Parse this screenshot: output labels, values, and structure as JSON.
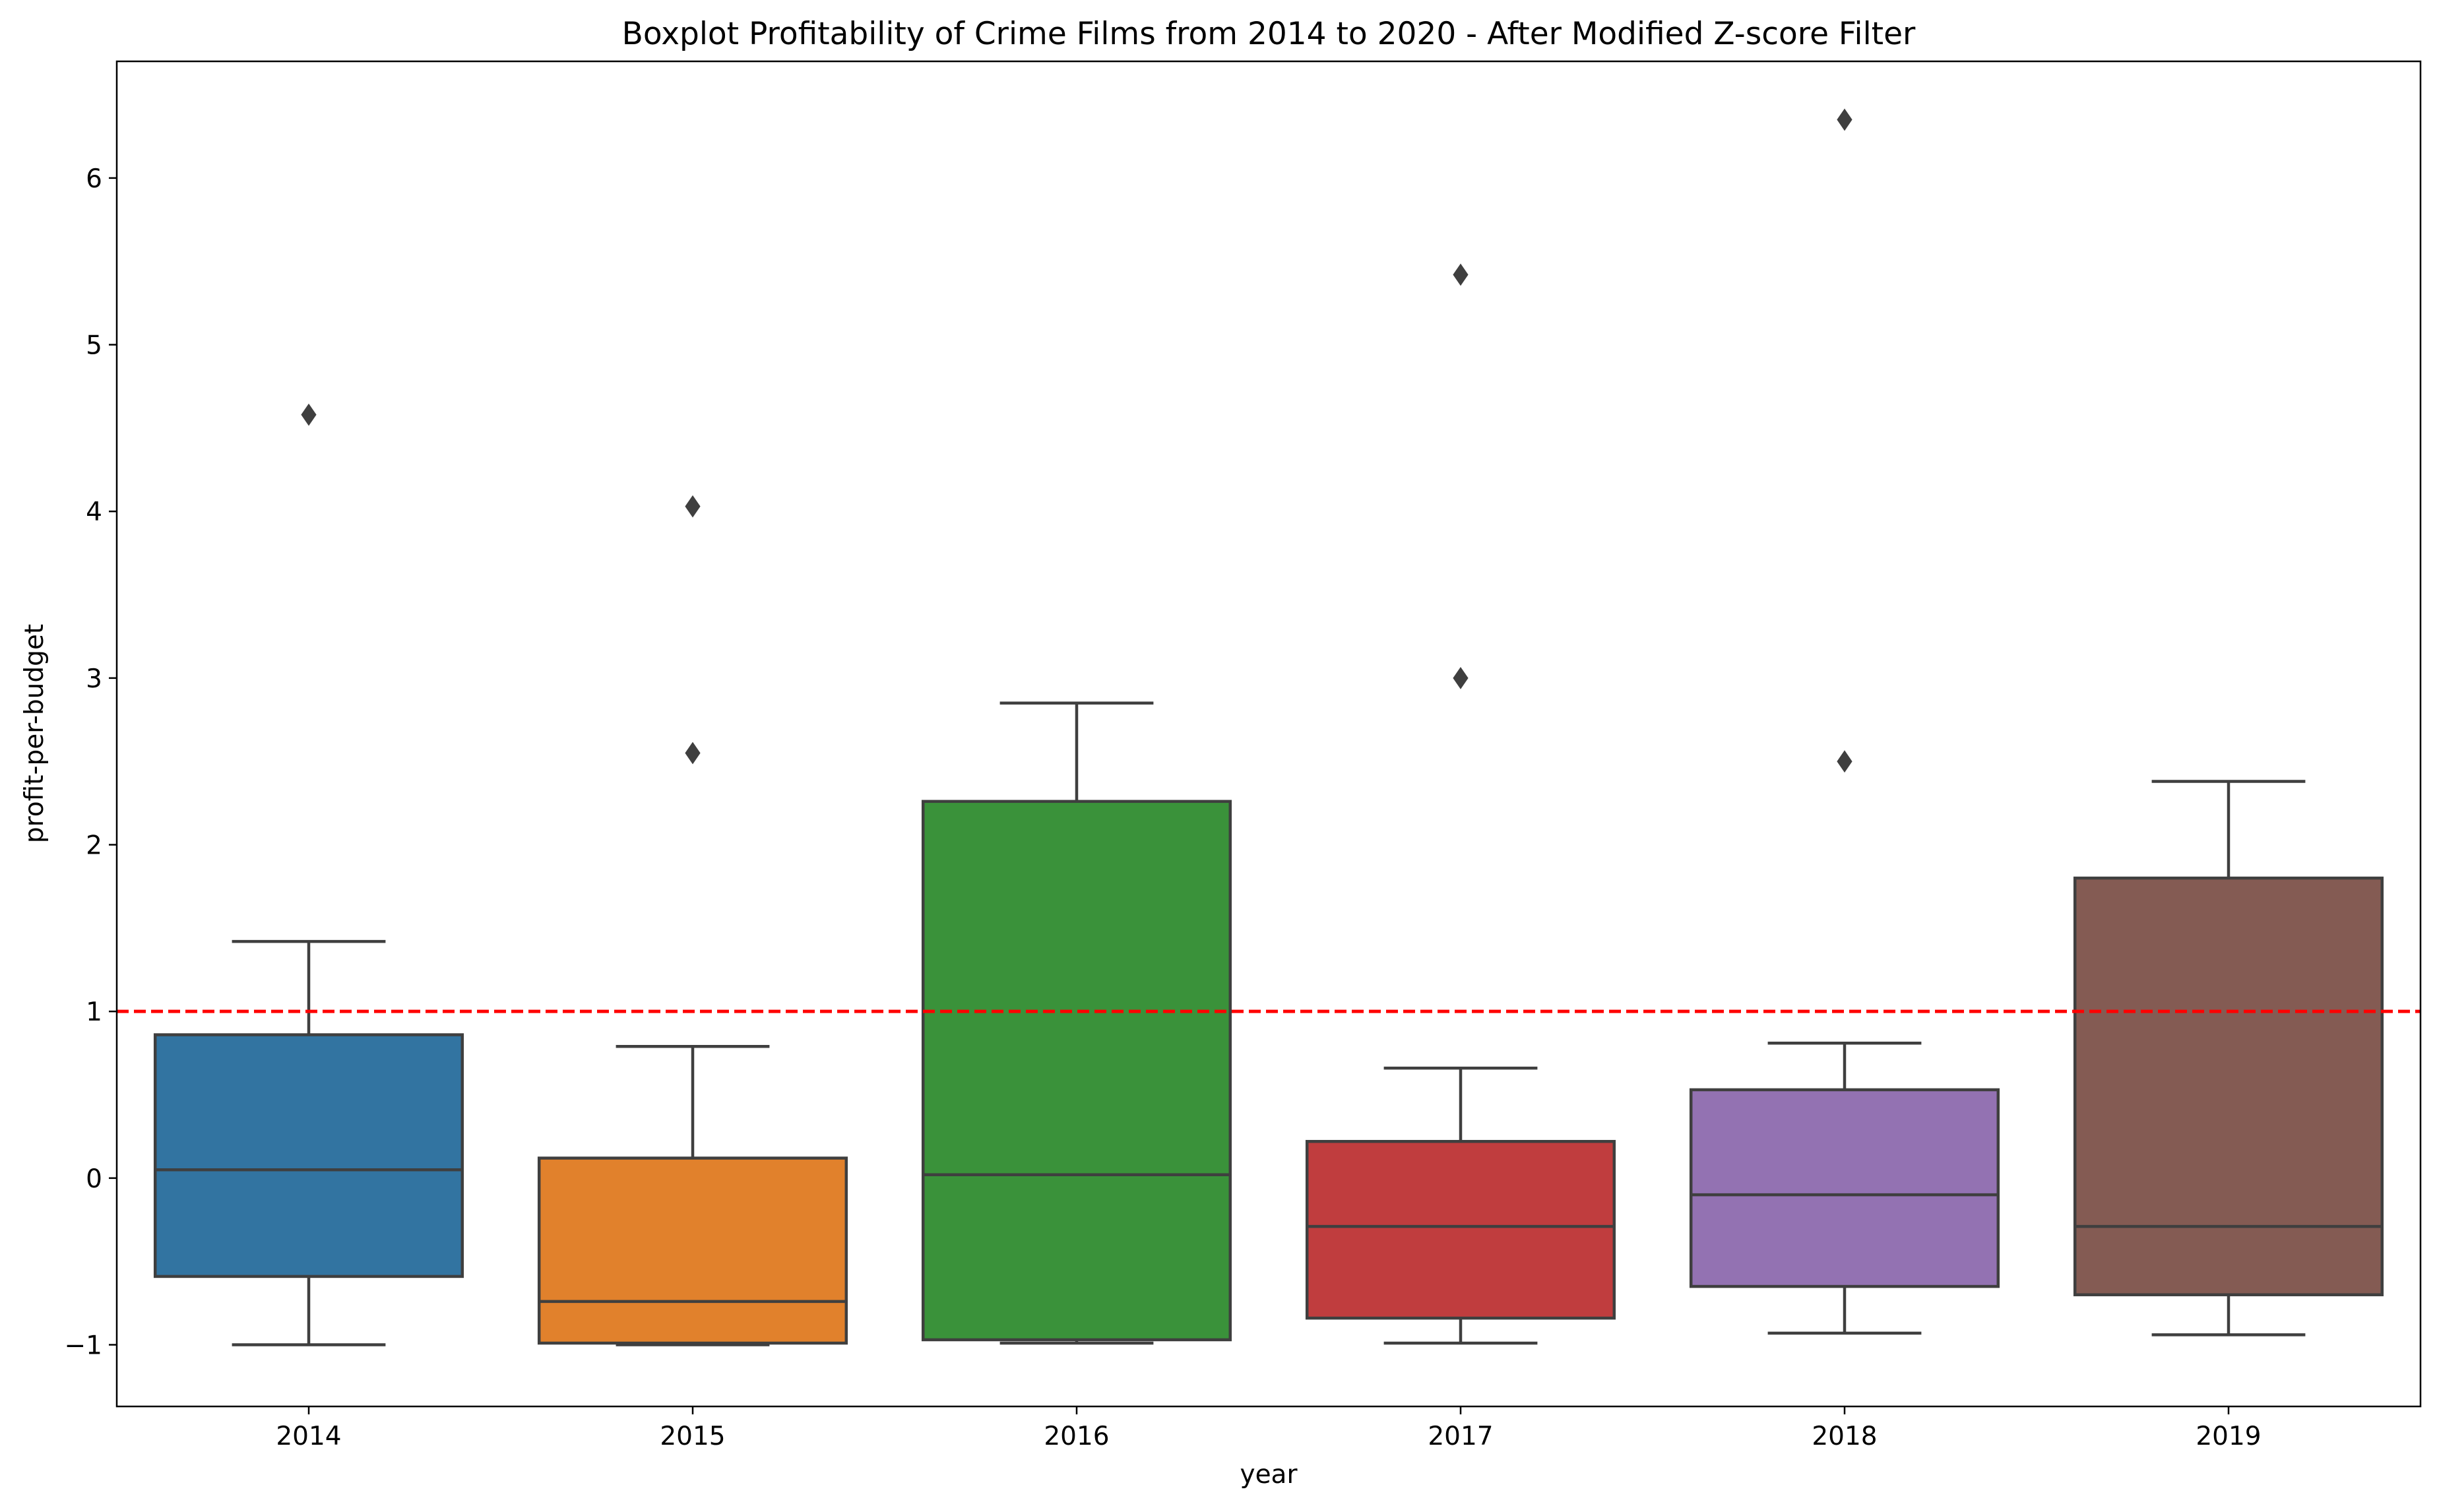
{
  "chart_data": {
    "type": "box",
    "title": "Boxplot Profitability of Crime Films from 2014 to 2020 - After Modified Z-score Filter",
    "xlabel": "year",
    "ylabel": "profit-per-budget",
    "categories": [
      "2014",
      "2015",
      "2016",
      "2017",
      "2018",
      "2019"
    ],
    "ylim": [
      -1.37,
      6.7
    ],
    "yticks": [
      -1,
      0,
      1,
      2,
      3,
      4,
      5,
      6
    ],
    "ytick_labels": [
      "−1",
      "0",
      "1",
      "2",
      "3",
      "4",
      "5",
      "6"
    ],
    "grid": false,
    "boxes": [
      {
        "category": "2014",
        "whisker_low": -1.0,
        "q1": -0.59,
        "median": 0.05,
        "q3": 0.86,
        "whisker_high": 1.42,
        "outliers": [
          4.58
        ],
        "color": "#3274a1"
      },
      {
        "category": "2015",
        "whisker_low": -1.0,
        "q1": -0.99,
        "median": -0.74,
        "q3": 0.12,
        "whisker_high": 0.79,
        "outliers": [
          2.55,
          4.03
        ],
        "color": "#e1812c"
      },
      {
        "category": "2016",
        "whisker_low": -0.99,
        "q1": -0.97,
        "median": 0.02,
        "q3": 2.26,
        "whisker_high": 2.85,
        "outliers": [],
        "color": "#3a923a"
      },
      {
        "category": "2017",
        "whisker_low": -0.99,
        "q1": -0.84,
        "median": -0.29,
        "q3": 0.22,
        "whisker_high": 0.66,
        "outliers": [
          3.0,
          5.42
        ],
        "color": "#c03d3e"
      },
      {
        "category": "2018",
        "whisker_low": -0.93,
        "q1": -0.65,
        "median": -0.1,
        "q3": 0.53,
        "whisker_high": 0.81,
        "outliers": [
          2.5,
          6.35
        ],
        "color": "#9372b2"
      },
      {
        "category": "2019",
        "whisker_low": -0.94,
        "q1": -0.7,
        "median": -0.29,
        "q3": 1.8,
        "whisker_high": 2.38,
        "outliers": [],
        "color": "#845b53"
      }
    ],
    "reference_line": {
      "y": 1.0,
      "color": "#ff0000",
      "style": "dashed"
    },
    "line_color": "#3f3f3f"
  }
}
